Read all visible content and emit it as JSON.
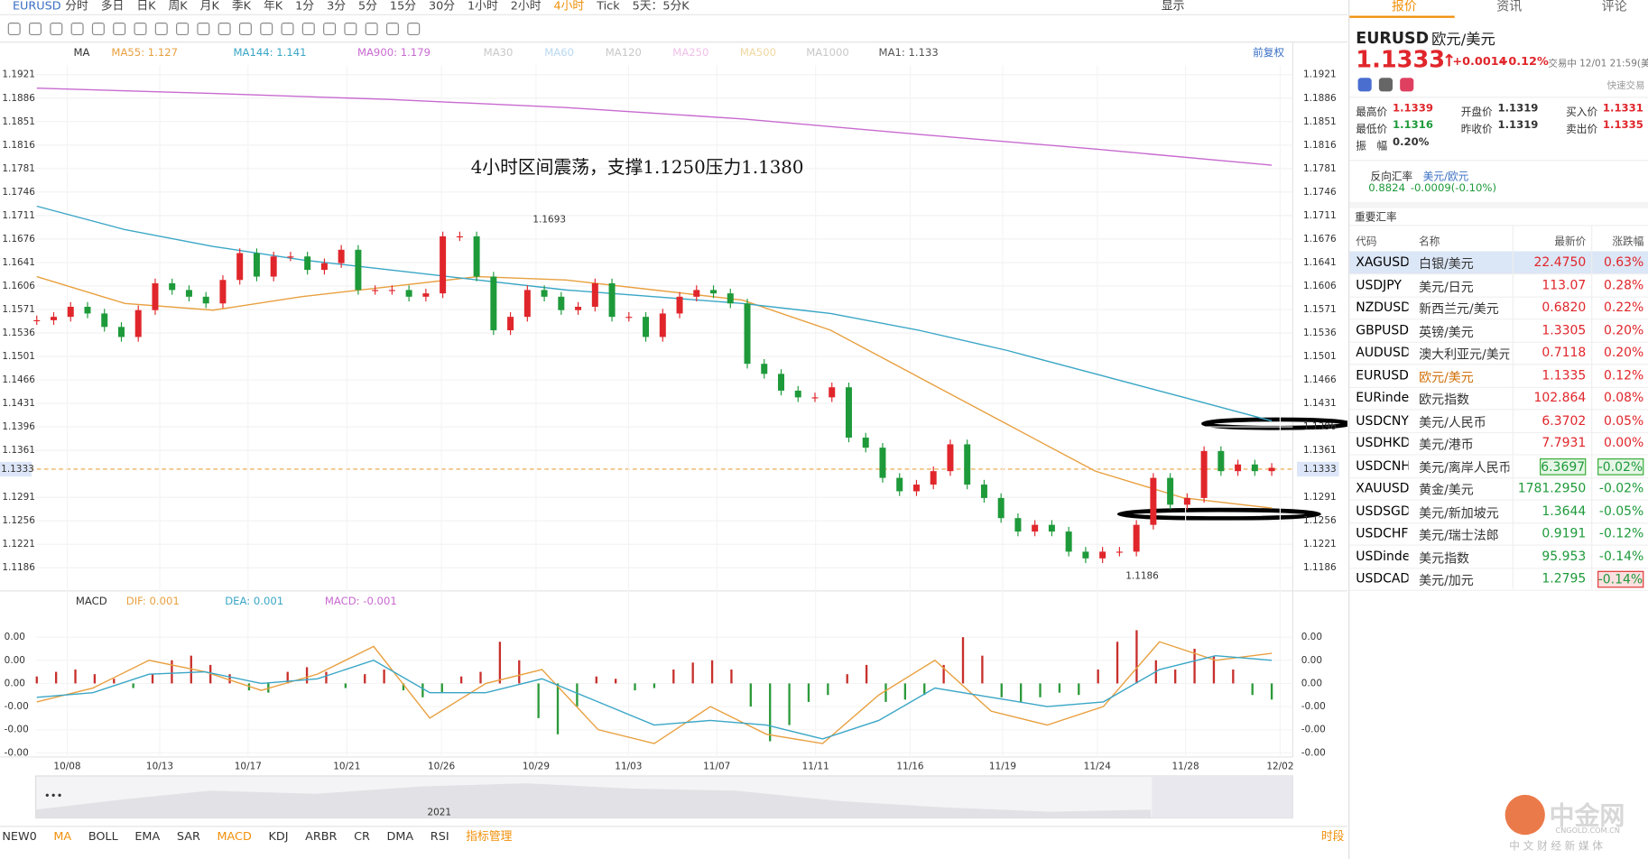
{
  "toolbar": {
    "symbol": "EURUSD",
    "periods": [
      {
        "label": "分时"
      },
      {
        "label": "多日"
      },
      {
        "label": "日K"
      },
      {
        "label": "周K"
      },
      {
        "label": "月K"
      },
      {
        "label": "季K"
      },
      {
        "label": "年K"
      },
      {
        "label": "1分"
      },
      {
        "label": "3分"
      },
      {
        "label": "5分"
      },
      {
        "label": "15分"
      },
      {
        "label": "30分"
      },
      {
        "label": "1小时"
      },
      {
        "label": "2小时"
      },
      {
        "label": "4小时",
        "active": true
      },
      {
        "label": "Tick"
      },
      {
        "label": "5天：5分K"
      }
    ],
    "display": "显示",
    "restore": "前复权"
  },
  "chart": {
    "ma_title": "MA",
    "ma_legend": [
      {
        "text": "MA55: 1.127",
        "color": "#e8a040",
        "values": [
          1.162,
          1.158,
          1.157,
          1.159,
          1.1605,
          1.162,
          1.1615,
          1.16,
          1.1585,
          1.154,
          1.147,
          1.14,
          1.133,
          1.129,
          1.1275
        ]
      },
      {
        "text": "MA144: 1.141",
        "color": "#3aa6c6",
        "values": [
          1.1725,
          1.169,
          1.1665,
          1.1645,
          1.163,
          1.1615,
          1.16,
          1.159,
          1.158,
          1.1565,
          1.154,
          1.151,
          1.1475,
          1.144,
          1.1405
        ]
      },
      {
        "text": "MA900: 1.179",
        "color": "#c86ad0",
        "values": [
          1.1901,
          1.1893,
          1.1884,
          1.1872,
          1.1855,
          1.1832,
          1.181,
          1.1786
        ]
      },
      {
        "text": "MA30",
        "color": "#c8c8c8"
      },
      {
        "text": "MA60",
        "color": "#b8d8f0"
      },
      {
        "text": "MA120",
        "color": "#c8c8c8"
      },
      {
        "text": "MA250",
        "color": "#f0c0e8"
      },
      {
        "text": "MA500",
        "color": "#f0d8a0"
      },
      {
        "text": "MA1000",
        "color": "#c8c8c8"
      },
      {
        "text": "MA1: 1.133",
        "color": "#555555"
      }
    ],
    "price_ticks": [
      1.1921,
      1.1886,
      1.1851,
      1.1816,
      1.1781,
      1.1746,
      1.1711,
      1.1676,
      1.1641,
      1.1606,
      1.1571,
      1.1536,
      1.1501,
      1.1466,
      1.1431,
      1.1396,
      1.1361,
      1.1291,
      1.1256,
      1.1221,
      1.1186
    ],
    "current_price": 1.1333,
    "annotation": "4小时区间震荡，支撑1.1250压力1.1380",
    "high_label": 1.1693,
    "low_label": 1.1186,
    "dates": [
      "10/08",
      "10/13",
      "10/17",
      "10/21",
      "10/26",
      "10/29",
      "11/03",
      "11/07",
      "11/11",
      "11/16",
      "11/19",
      "11/24",
      "11/28",
      "12/02"
    ],
    "closes": [
      1.1555,
      1.156,
      1.1575,
      1.1565,
      1.1545,
      1.153,
      1.157,
      1.161,
      1.16,
      1.159,
      1.158,
      1.1615,
      1.1655,
      1.162,
      1.165,
      1.165,
      1.163,
      1.164,
      1.166,
      1.16,
      1.16,
      1.16,
      1.159,
      1.1595,
      1.168,
      1.168,
      1.162,
      1.154,
      1.156,
      1.16,
      1.159,
      1.157,
      1.1575,
      1.161,
      1.156,
      1.156,
      1.153,
      1.1565,
      1.159,
      1.16,
      1.1595,
      1.158,
      1.149,
      1.1475,
      1.145,
      1.144,
      1.144,
      1.1455,
      1.138,
      1.1365,
      1.132,
      1.13,
      1.131,
      1.133,
      1.137,
      1.131,
      1.129,
      1.126,
      1.124,
      1.125,
      1.124,
      1.121,
      1.12,
      1.121,
      1.121,
      1.125,
      1.132,
      1.128,
      1.129,
      1.136,
      1.133,
      1.134,
      1.133,
      1.1335
    ],
    "macd": {
      "title": "MACD",
      "legend": [
        {
          "text": "DIF: 0.001",
          "color": "#e8a040"
        },
        {
          "text": "DEA: 0.001",
          "color": "#3aa6c6"
        },
        {
          "text": "MACD: -0.001",
          "color": "#c86ad0"
        }
      ],
      "ticks": [
        {
          "value": 0.002,
          "label": "0.00"
        },
        {
          "value": 0.001,
          "label": "0.00"
        },
        {
          "value": 0,
          "label": "0.00"
        },
        {
          "value": -0.001,
          "label": "-0.00"
        },
        {
          "value": -0.002,
          "label": "-0.00"
        },
        {
          "value": -0.003,
          "label": "-0.00"
        }
      ],
      "hist": [
        0.0003,
        0.0005,
        0.0006,
        0.0004,
        0.0002,
        -0.0002,
        0.0004,
        0.001,
        0.0012,
        0.0008,
        0.0004,
        -0.0003,
        -0.0004,
        0.0005,
        0.0007,
        0.0005,
        -0.0002,
        0.0004,
        0.0006,
        -0.0003,
        -0.0006,
        -0.0004,
        0.0003,
        0.0005,
        0.0018,
        0.001,
        -0.0015,
        -0.0022,
        -0.001,
        0.0003,
        0.0002,
        -0.0003,
        -0.0002,
        0.0006,
        0.0009,
        0.001,
        0.0006,
        -0.001,
        -0.0025,
        -0.0018,
        -0.0008,
        -0.0005,
        0.0004,
        0.0008,
        -0.0008,
        -0.0007,
        -0.0005,
        0.0008,
        0.002,
        0.0012,
        -0.0006,
        -0.0008,
        -0.0006,
        -0.0004,
        -0.0005,
        0.0006,
        0.0018,
        0.0023,
        0.001,
        0.0006,
        0.0015,
        0.0012,
        0.0006,
        -0.0005,
        -0.0007
      ],
      "dif": [
        -0.0008,
        -0.0002,
        0.001,
        0.0005,
        -0.0003,
        0.0004,
        0.0016,
        -0.0015,
        0.0,
        0.0006,
        -0.002,
        -0.0026,
        -0.001,
        -0.0022,
        -0.0026,
        -0.0005,
        0.001,
        -0.0012,
        -0.0018,
        -0.001,
        0.0018,
        0.001,
        0.0013
      ],
      "dea": [
        -0.0006,
        -0.0004,
        0.0004,
        0.0005,
        0.0,
        0.0002,
        0.001,
        -0.0004,
        -0.0004,
        0.0002,
        -0.0008,
        -0.0018,
        -0.0016,
        -0.0018,
        -0.0024,
        -0.0016,
        -0.0002,
        -0.0006,
        -0.001,
        -0.0008,
        0.0006,
        0.0012,
        0.001
      ]
    },
    "navigator_year": "2021"
  },
  "indicators": [
    {
      "label": "NEW0"
    },
    {
      "label": "MA",
      "active": true
    },
    {
      "label": "BOLL"
    },
    {
      "label": "EMA"
    },
    {
      "label": "SAR"
    },
    {
      "label": "MACD",
      "active": true
    },
    {
      "label": "KDJ"
    },
    {
      "label": "ARBR"
    },
    {
      "label": "CR"
    },
    {
      "label": "DMA"
    },
    {
      "label": "RSI"
    },
    {
      "label": "指标管理",
      "active": true
    }
  ],
  "period_label": "时段",
  "quote": {
    "tabs": [
      "报价",
      "资讯",
      "评论"
    ],
    "symbol": "EURUSD",
    "name": "欧元/美元",
    "price": "1.1333",
    "change": "+0.0014",
    "change_pct": "+0.12%",
    "status": "交易中 12/01 21:59(美",
    "quick_trade": "快速交易",
    "stats": [
      [
        "最高价",
        "1.1339"
      ],
      [
        "开盘价",
        "1.1319"
      ],
      [
        "买入价",
        "1.1331"
      ],
      [
        "最低价",
        "1.1316"
      ],
      [
        "昨收价",
        "1.1319"
      ],
      [
        "卖出价",
        "1.1335"
      ],
      [
        "振　幅",
        "0.20%"
      ]
    ],
    "reverse": {
      "label": "反向汇率",
      "pair": "美元/欧元",
      "price": "0.8824",
      "change": "-0.0009(-0.10%)"
    }
  },
  "table": {
    "title": "重要汇率",
    "header": [
      "代码",
      "名称",
      "最新价",
      "涨跌幅"
    ],
    "rows": [
      [
        "XAGUSD",
        "白银/美元",
        "22.4750",
        "0.63%"
      ],
      [
        "USDJPY",
        "美元/日元",
        "113.07",
        "0.28%"
      ],
      [
        "NZDUSD",
        "新西兰元/美元",
        "0.6820",
        "0.22%"
      ],
      [
        "GBPUSD",
        "英镑/美元",
        "1.3305",
        "0.20%"
      ],
      [
        "AUDUSD",
        "澳大利亚元/美元",
        "0.7118",
        "0.20%"
      ],
      [
        "EURUSD",
        "欧元/美元",
        "1.1335",
        "0.12%"
      ],
      [
        "EURindex",
        "欧元指数",
        "102.864",
        "0.08%"
      ],
      [
        "USDCNY",
        "美元/人民币",
        "6.3702",
        "0.05%"
      ],
      [
        "USDHKD",
        "美元/港币",
        "7.7931",
        "0.00%"
      ],
      [
        "USDCNH",
        "美元/离岸人民币",
        "6.3697",
        "-0.02%"
      ],
      [
        "XAUUSD",
        "黄金/美元",
        "1781.2950",
        "-0.02%"
      ],
      [
        "USDSGD",
        "美元/新加坡元",
        "1.3644",
        "-0.05%"
      ],
      [
        "USDCHF",
        "美元/瑞士法郎",
        "0.9191",
        "-0.12%"
      ],
      [
        "USDindex",
        "美元指数",
        "95.953",
        "-0.14%"
      ],
      [
        "USDCAD",
        "美元/加元",
        "1.2795",
        "-0.14%"
      ]
    ]
  },
  "watermark": {
    "brand": "中金网",
    "domain": "CNGOLD.COM.CN",
    "slogan": "中 文 财 经 新 媒 体"
  }
}
